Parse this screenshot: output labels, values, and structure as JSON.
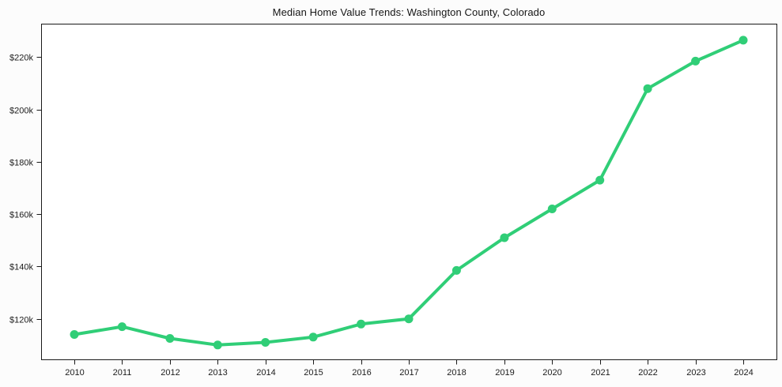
{
  "page": {
    "background_color": "#fcfcfc",
    "plot_background_color": "#ffffff",
    "axis_color": "#1a1a1a"
  },
  "chart_data": {
    "type": "line",
    "title": "Median Home Value Trends: Washington County, Colorado",
    "xlabel": "",
    "ylabel": "",
    "categories": [
      "2010",
      "2011",
      "2012",
      "2013",
      "2014",
      "2015",
      "2016",
      "2017",
      "2018",
      "2019",
      "2020",
      "2021",
      "2022",
      "2023",
      "2024"
    ],
    "series": [
      {
        "name": "median-home-value",
        "color": "#30ce77",
        "marker": "circle",
        "line_width": 4,
        "marker_radius": 5.5,
        "values": [
          114000,
          117000,
          112500,
          110000,
          111000,
          113000,
          118000,
          120000,
          138500,
          151000,
          162000,
          173000,
          208000,
          218500,
          226500
        ]
      }
    ],
    "ylim": [
      104500,
      232800
    ],
    "ytick_values": [
      120000,
      140000,
      160000,
      180000,
      200000,
      220000
    ],
    "ytick_labels": [
      "$120k",
      "$140k",
      "$160k",
      "$180k",
      "$200k",
      "$220k"
    ],
    "xtick_labels": [
      "2010",
      "2011",
      "2012",
      "2013",
      "2014",
      "2015",
      "2016",
      "2017",
      "2018",
      "2019",
      "2020",
      "2021",
      "2022",
      "2023",
      "2024"
    ],
    "grid": false,
    "legend_position": "none"
  }
}
